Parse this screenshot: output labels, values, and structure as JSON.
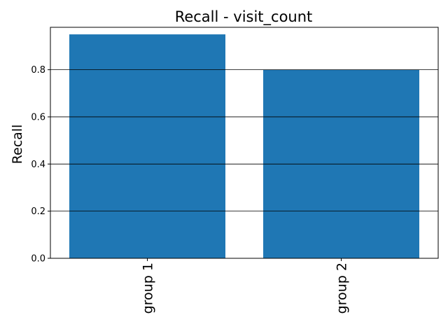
{
  "chart_data": {
    "type": "bar",
    "title": "Recall - visit_count",
    "xlabel": "",
    "ylabel": "Recall",
    "categories": [
      "group 1",
      "group 2"
    ],
    "values": [
      0.95,
      0.8
    ],
    "ylim": [
      0,
      0.98
    ],
    "yticks": [
      0.0,
      0.2,
      0.4,
      0.6,
      0.8
    ],
    "ytick_labels": [
      "0.0",
      "0.2",
      "0.4",
      "0.6",
      "0.8"
    ],
    "grid": "y-major",
    "x_tick_rotation": "vertical",
    "bar_color": "#1f77b4",
    "grid_color": "#000000"
  }
}
